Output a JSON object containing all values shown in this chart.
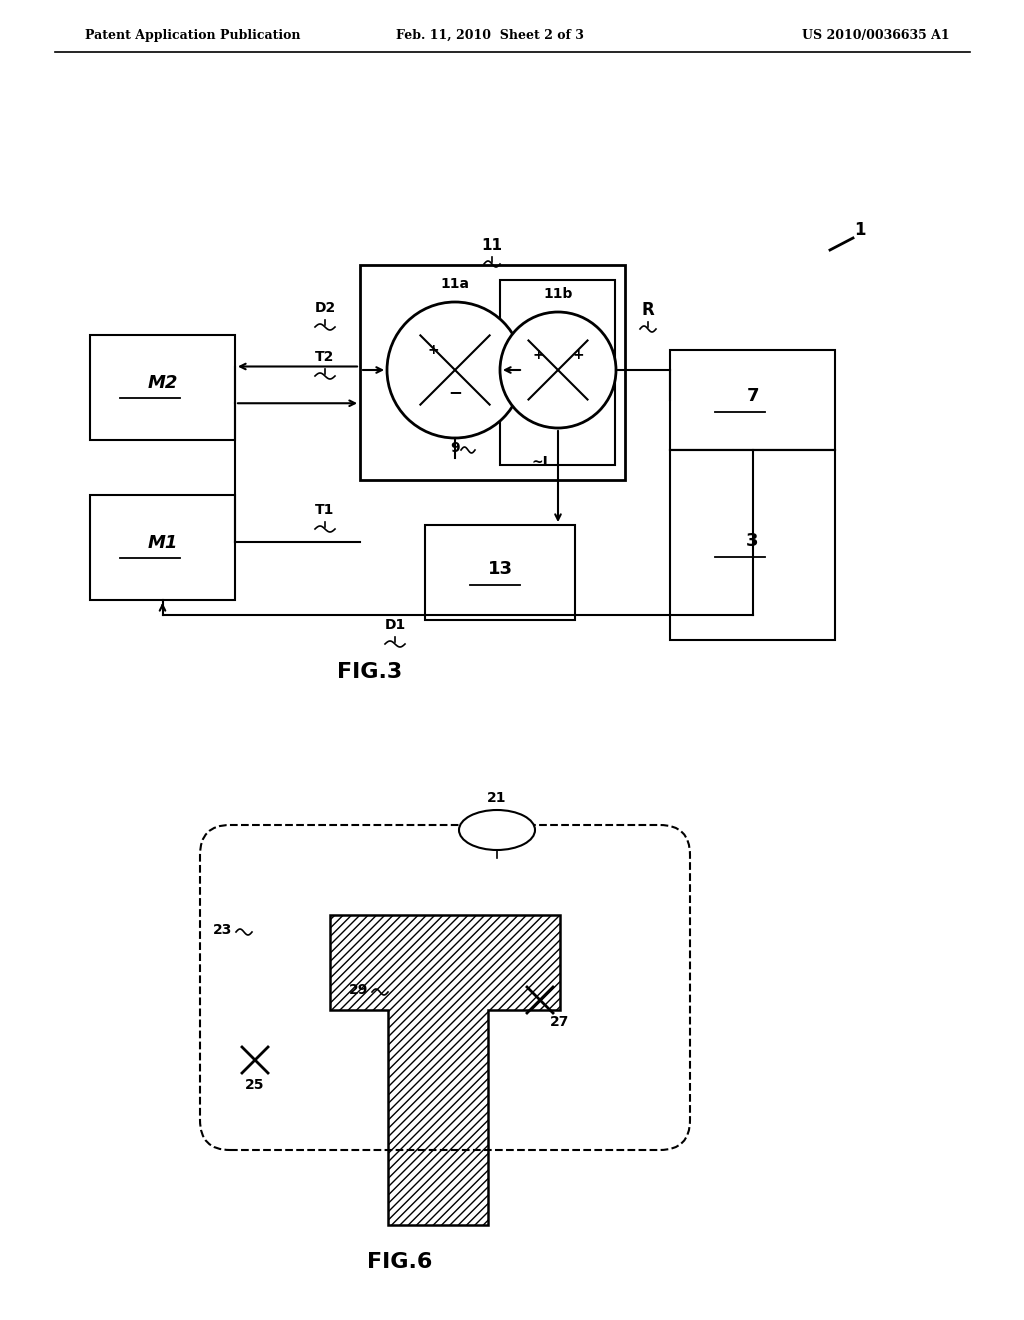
{
  "header_left": "Patent Application Publication",
  "header_center": "Feb. 11, 2010  Sheet 2 of 3",
  "header_right": "US 2010/0036635 A1",
  "bg_color": "#ffffff",
  "line_color": "#000000",
  "fig3_label": "FIG.3",
  "fig6_label": "FIG.6"
}
